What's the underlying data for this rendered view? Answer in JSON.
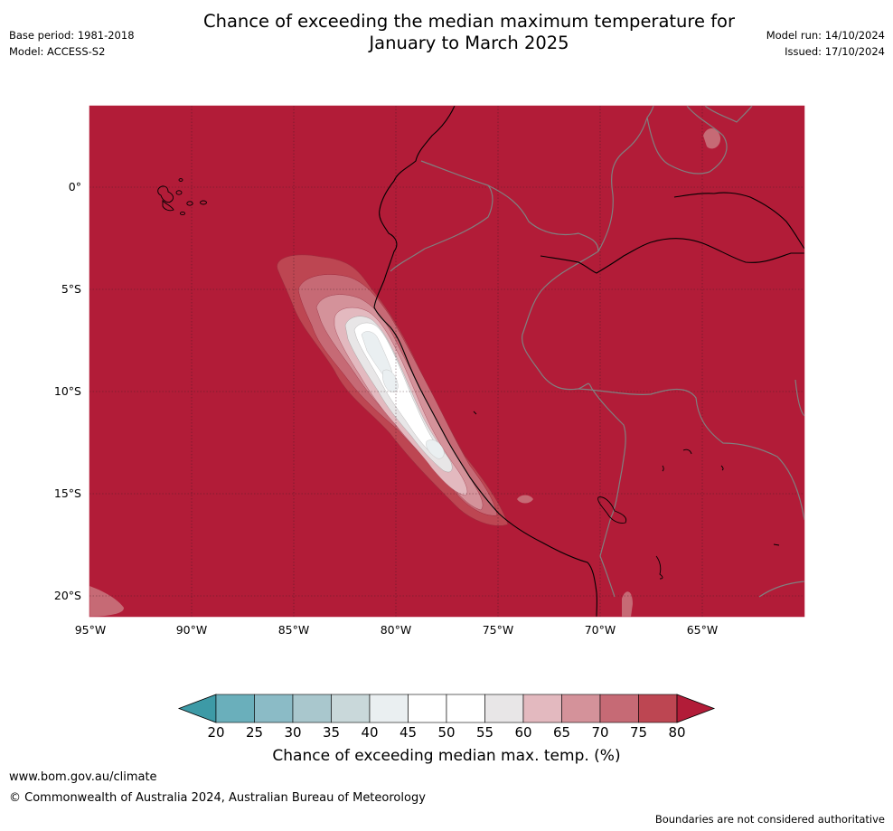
{
  "title": {
    "line1": "Chance of exceeding the median maximum temperature for",
    "line2": "January to March 2025"
  },
  "meta_left": {
    "base_period": "Base period: 1981-2018",
    "model": "Model: ACCESS-S2"
  },
  "meta_right": {
    "model_run": "Model run: 14/10/2024",
    "issued": "Issued: 17/10/2024"
  },
  "map": {
    "region": "Western South America and eastern Pacific",
    "lon_range": [
      -95,
      -60
    ],
    "lat_range": [
      -21,
      4
    ],
    "lat_labels": [
      "0°",
      "5°S",
      "10°S",
      "15°S",
      "20°S"
    ],
    "lon_labels": [
      "95°W",
      "90°W",
      "85°W",
      "80°W",
      "75°W",
      "70°W",
      "65°W"
    ],
    "background_probability": "80",
    "features": [
      "coastline",
      "country borders",
      "Galápagos Islands",
      "Lake Titicaca"
    ],
    "anomaly_note": "Lower chance band along coast of Peru"
  },
  "colorbar": {
    "ticks": [
      "20",
      "25",
      "30",
      "35",
      "40",
      "45",
      "50",
      "55",
      "60",
      "65",
      "70",
      "75",
      "80"
    ],
    "colors": [
      "#3d9aa6",
      "#6aafbb",
      "#8bbbc6",
      "#a9c7cd",
      "#c9d8da",
      "#eaeff1",
      "#ffffff",
      "#ffffff",
      "#e8e6e7",
      "#e3b9bf",
      "#d4929a",
      "#c66a75",
      "#bd4652",
      "#b21c38"
    ],
    "label": "Chance of exceeding median max. temp. (%)"
  },
  "footer": {
    "url": "www.bom.gov.au/climate",
    "copyright": "© Commonwealth of Australia 2024, Australian Bureau of Meteorology",
    "note": "Boundaries are not considered authoritative"
  }
}
